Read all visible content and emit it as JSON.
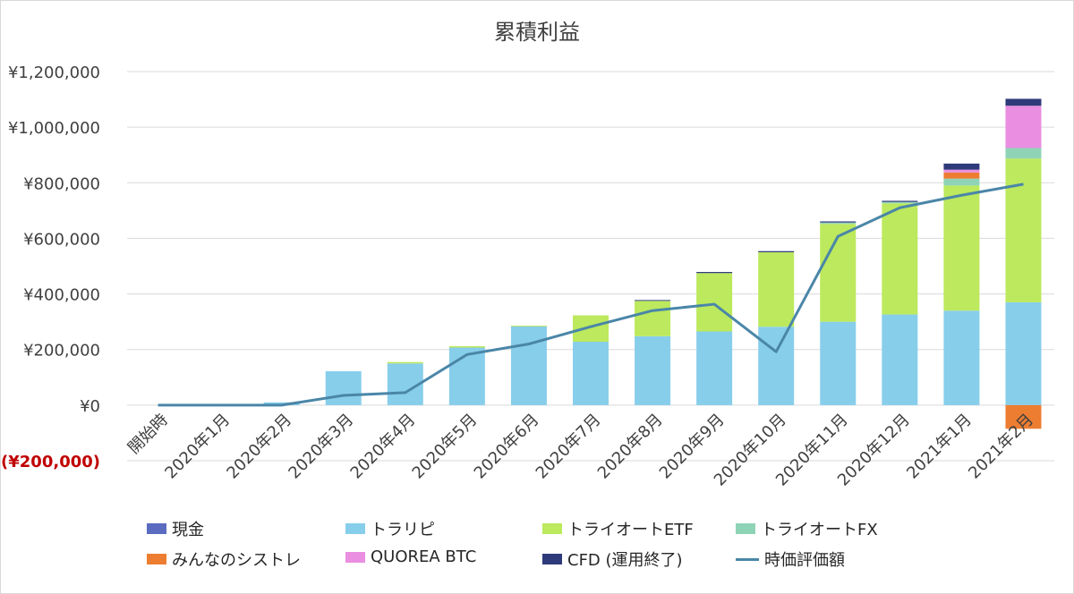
{
  "chart_data": {
    "type": "bar",
    "title": "累積利益",
    "categories": [
      "開始時",
      "2020年1月",
      "2020年2月",
      "2020年3月",
      "2020年4月",
      "2020年5月",
      "2020年6月",
      "2020年7月",
      "2020年8月",
      "2020年9月",
      "2020年10月",
      "2020年11月",
      "2020年12月",
      "2021年1月",
      "2021年2月"
    ],
    "ylim": [
      -200000,
      1200000
    ],
    "yticks": [
      {
        "value": 1200000,
        "label": "¥1,200,000"
      },
      {
        "value": 1000000,
        "label": "¥1,000,000"
      },
      {
        "value": 800000,
        "label": "¥800,000"
      },
      {
        "value": 600000,
        "label": "¥600,000"
      },
      {
        "value": 400000,
        "label": "¥400,000"
      },
      {
        "value": 200000,
        "label": "¥200,000"
      },
      {
        "value": 0,
        "label": "¥0"
      },
      {
        "value": -200000,
        "label": "(¥200,000)"
      }
    ],
    "grid": true,
    "legend_position": "bottom",
    "series": [
      {
        "name": "現金",
        "kind": "bar",
        "color": "#5b6bc0",
        "values": [
          0,
          0,
          0,
          0,
          0,
          0,
          0,
          0,
          0,
          0,
          0,
          0,
          0,
          0,
          0
        ]
      },
      {
        "name": "トラリピ",
        "kind": "bar",
        "color": "#87ceeb",
        "values": [
          0,
          0,
          10000,
          122000,
          150000,
          207000,
          283000,
          228000,
          248000,
          265000,
          282000,
          300000,
          326000,
          340000,
          370000
        ]
      },
      {
        "name": "トライオートETF",
        "kind": "bar",
        "color": "#bce95d",
        "values": [
          0,
          0,
          0,
          0,
          5000,
          5000,
          3000,
          95000,
          127000,
          210000,
          268000,
          352000,
          400000,
          450000,
          517000
        ]
      },
      {
        "name": "トライオートFX",
        "kind": "bar",
        "color": "#8fd3b6",
        "values": [
          0,
          0,
          0,
          0,
          0,
          0,
          0,
          0,
          0,
          0,
          0,
          5000,
          5000,
          25000,
          38000
        ]
      },
      {
        "name": "みんなのシストレ",
        "kind": "bar",
        "color": "#ed7d31",
        "values": [
          0,
          0,
          0,
          0,
          0,
          0,
          0,
          0,
          0,
          0,
          0,
          0,
          0,
          22000,
          -85000
        ]
      },
      {
        "name": "QUOREA BTC",
        "kind": "bar",
        "color": "#e98ee0",
        "values": [
          0,
          0,
          0,
          0,
          0,
          0,
          0,
          0,
          0,
          0,
          0,
          0,
          0,
          10000,
          152000
        ]
      },
      {
        "name": "CFD (運用終了)",
        "kind": "bar",
        "color": "#2f3a7a",
        "values": [
          0,
          0,
          0,
          0,
          0,
          0,
          0,
          0,
          3000,
          4000,
          4000,
          4000,
          4000,
          22000,
          25000
        ]
      },
      {
        "name": "時価評価額",
        "kind": "line",
        "color": "#4a86a8",
        "values": [
          0,
          0,
          0,
          35000,
          45000,
          182000,
          220000,
          282000,
          340000,
          363000,
          192000,
          607000,
          710000,
          755000,
          795000
        ]
      }
    ]
  }
}
